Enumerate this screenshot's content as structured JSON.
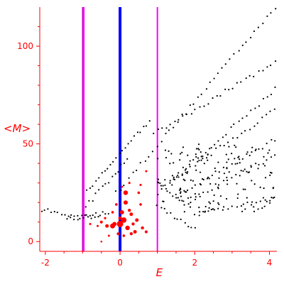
{
  "chart_data": {
    "type": "scatter",
    "title": "",
    "xlabel": "E",
    "ylabel": "<M>",
    "xlim": [
      -2.15,
      4.2
    ],
    "ylim": [
      -5,
      120
    ],
    "x_ticks": [
      -2,
      0,
      2,
      4
    ],
    "x_tick_labels": [
      "-2",
      "0",
      "2",
      "4"
    ],
    "y_ticks": [
      0,
      50,
      100
    ],
    "y_tick_labels": [
      "0",
      "50",
      "100"
    ],
    "grid": false,
    "legend": "none",
    "axis_color": "#ff0000",
    "vertical_lines": [
      {
        "x": -1.0,
        "color": "#cc00cc",
        "role": "purple-boundary"
      },
      {
        "x": -0.97,
        "color": "#ff00ff",
        "role": "magenta-boundary"
      },
      {
        "x": 0.0,
        "color": "#0000ff",
        "role": "blue-center"
      },
      {
        "x": 1.0,
        "color": "#ff00ff",
        "role": "magenta-boundary"
      }
    ],
    "series": [
      {
        "color": "#000000",
        "marker": "dot",
        "segments": [
          {
            "x0": -0.1,
            "y0": 25,
            "x1": 4.15,
            "y1": 120,
            "n": 40
          },
          {
            "x0": 0.9,
            "y0": 55,
            "x1": 4.15,
            "y1": 92,
            "n": 30
          },
          {
            "x0": 1.0,
            "y0": 24,
            "x1": 4.15,
            "y1": 78,
            "n": 30
          },
          {
            "x0": 1.1,
            "y0": 28,
            "x1": 4.15,
            "y1": 67,
            "n": 28
          },
          {
            "x0": 1.5,
            "y0": 24,
            "x1": 4.15,
            "y1": 52,
            "n": 26
          },
          {
            "x0": 1.7,
            "y0": 20,
            "x1": 4.15,
            "y1": 44,
            "n": 24
          },
          {
            "x0": 2.0,
            "y0": 14,
            "x1": 4.15,
            "y1": 22,
            "n": 18
          },
          {
            "x0": -2.1,
            "y0": 16,
            "x1": -0.6,
            "y1": 12,
            "n": 18
          },
          {
            "x0": -0.9,
            "y0": 26,
            "x1": 0.8,
            "y1": 62,
            "n": 22
          },
          {
            "x0": -0.9,
            "y0": 18,
            "x1": 0.2,
            "y1": 42,
            "n": 14
          },
          {
            "x0": -1.4,
            "y0": 11,
            "x1": -0.3,
            "y1": 15,
            "n": 14
          },
          {
            "x0": 1.0,
            "y0": 18,
            "x1": 2.0,
            "y1": 6,
            "n": 12
          },
          {
            "x0": 1.0,
            "y0": 30,
            "x1": 1.9,
            "y1": 17,
            "n": 12
          }
        ],
        "cloud": {
          "x0": 1.0,
          "x1": 4.15,
          "y0": 15,
          "y1": 50,
          "n": 150
        }
      },
      {
        "color": "#ff0000",
        "marker": "circle",
        "points": [
          [
            0.0,
            9,
            4.5
          ],
          [
            0.1,
            11,
            3.8
          ],
          [
            -0.2,
            8,
            3.5
          ],
          [
            0.2,
            7,
            3.2
          ],
          [
            0.15,
            20,
            3.0
          ],
          [
            0.15,
            25,
            3.2
          ],
          [
            0.05,
            15,
            3.0
          ],
          [
            0.3,
            14,
            2.5
          ],
          [
            -0.15,
            9,
            3.0
          ],
          [
            -0.35,
            8,
            2.5
          ],
          [
            -0.5,
            10,
            2.0
          ],
          [
            0.45,
            11,
            2.5
          ],
          [
            0.4,
            5,
            2.5
          ],
          [
            0.3,
            4,
            2.2
          ],
          [
            0.6,
            7,
            2.2
          ],
          [
            0.7,
            5,
            2.0
          ],
          [
            0.55,
            19,
            1.8
          ],
          [
            0.5,
            25,
            1.8
          ],
          [
            0.55,
            29,
            1.6
          ],
          [
            0.25,
            30,
            1.6
          ],
          [
            -0.1,
            19,
            1.8
          ],
          [
            -0.2,
            15,
            1.8
          ],
          [
            -0.4,
            12,
            1.6
          ],
          [
            -0.6,
            8,
            1.5
          ],
          [
            -0.8,
            9,
            1.5
          ],
          [
            -0.05,
            4,
            2.0
          ],
          [
            0.1,
            3,
            1.8
          ],
          [
            0.05,
            28,
            1.5
          ],
          [
            -0.3,
            3,
            1.5
          ],
          [
            0.35,
            9,
            2.2
          ],
          [
            0.25,
            16,
            2.2
          ],
          [
            0.0,
            12,
            2.5
          ],
          [
            0.7,
            36,
            1.5
          ],
          [
            -0.5,
            0,
            1.3
          ]
        ]
      }
    ]
  }
}
